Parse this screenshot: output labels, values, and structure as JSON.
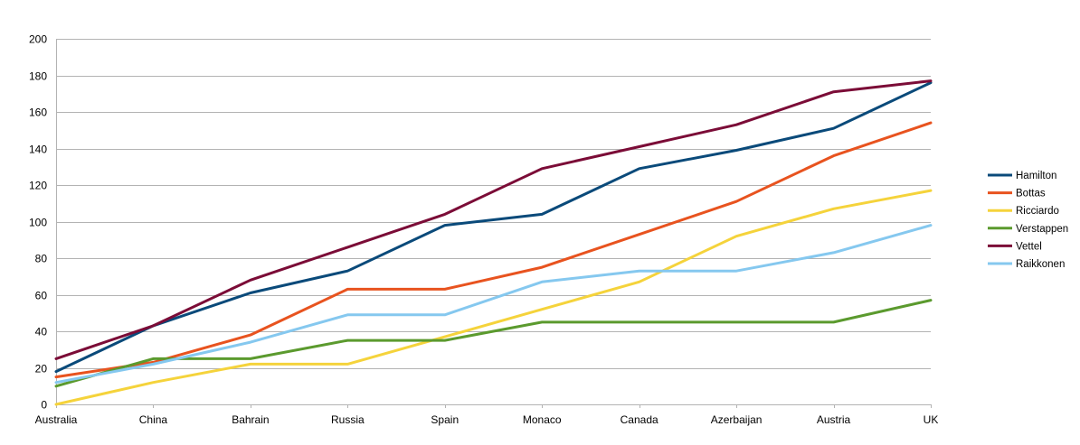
{
  "chart_data": {
    "type": "line",
    "categories": [
      "Australia",
      "China",
      "Bahrain",
      "Russia",
      "Spain",
      "Monaco",
      "Canada",
      "Azerbaijan",
      "Austria",
      "UK"
    ],
    "ylim": [
      0,
      200
    ],
    "y_ticks": [
      0,
      20,
      40,
      60,
      80,
      100,
      120,
      140,
      160,
      180,
      200
    ],
    "grid": true,
    "legend_position": "right",
    "series": [
      {
        "name": "Hamilton",
        "color": "#0a4a7a",
        "values": [
          18,
          43,
          61,
          73,
          98,
          104,
          129,
          139,
          151,
          176
        ]
      },
      {
        "name": "Bottas",
        "color": "#e8531f",
        "values": [
          15,
          23,
          38,
          63,
          63,
          75,
          93,
          111,
          136,
          154
        ]
      },
      {
        "name": "Ricciardo",
        "color": "#f5d33b",
        "values": [
          0,
          12,
          22,
          22,
          37,
          52,
          67,
          92,
          107,
          117
        ]
      },
      {
        "name": "Verstappen",
        "color": "#5b9a2e",
        "values": [
          10,
          25,
          25,
          35,
          35,
          45,
          45,
          45,
          45,
          57
        ]
      },
      {
        "name": "Vettel",
        "color": "#7b0c37",
        "values": [
          25,
          43,
          68,
          86,
          104,
          129,
          141,
          153,
          171,
          177
        ]
      },
      {
        "name": "Raikkonen",
        "color": "#85c8ef",
        "values": [
          12,
          22,
          34,
          49,
          49,
          67,
          73,
          73,
          83,
          98
        ]
      }
    ]
  }
}
